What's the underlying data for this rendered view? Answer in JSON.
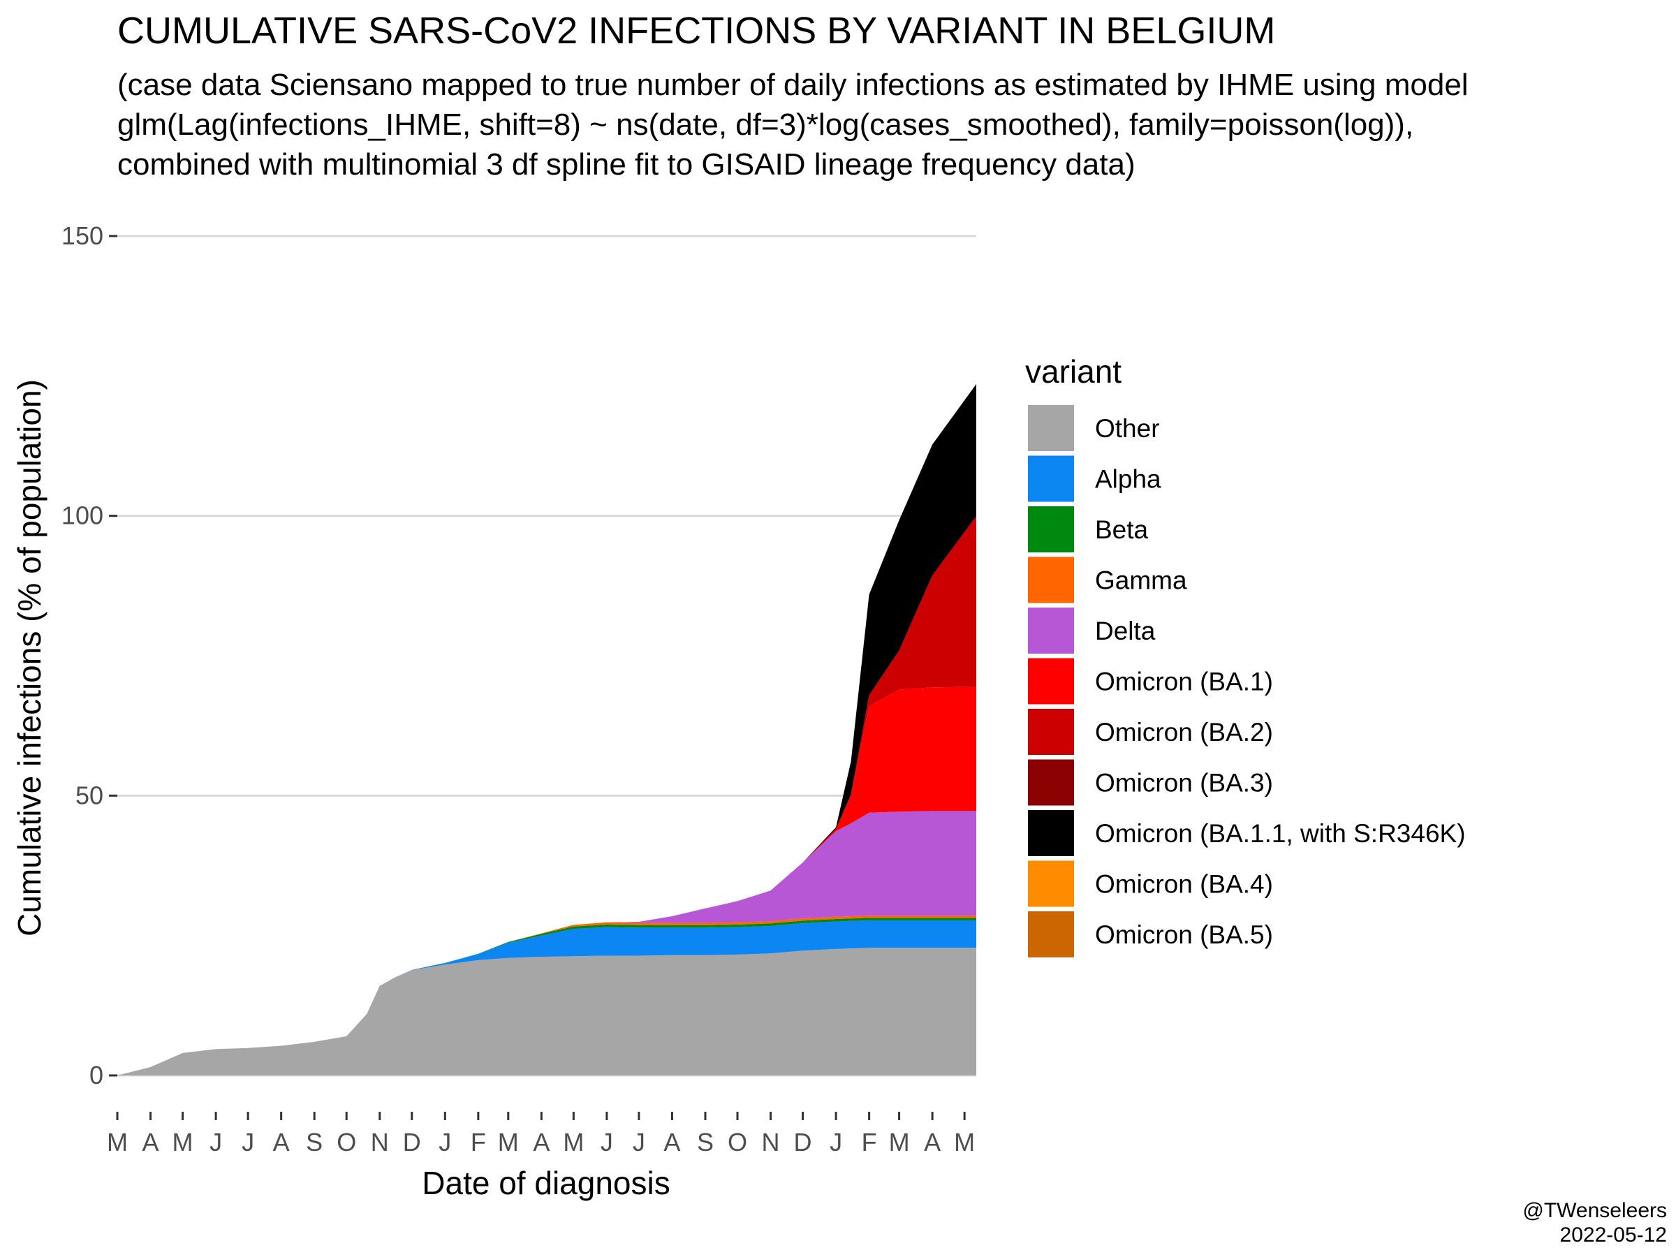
{
  "chart_data": {
    "type": "area",
    "stacked": true,
    "title": "CUMULATIVE SARS-CoV2 INFECTIONS BY VARIANT IN BELGIUM",
    "subtitle": [
      "(case data Sciensano mapped to true number of daily infections as estimated by IHME using model",
      "glm(Lag(infections_IHME, shift=8) ~ ns(date, df=3)*log(cases_smoothed), family=poisson(log)),",
      "combined with multinomial 3 df spline fit to GISAID lineage frequency data)"
    ],
    "xlabel": "Date of diagnosis",
    "ylabel": "Cumulative infections (% of population)",
    "ylim": [
      0,
      150
    ],
    "yticks": [
      0,
      50,
      100,
      150
    ],
    "xlim": [
      "2020-03-01",
      "2022-05-12"
    ],
    "xtick_dates": [
      "2020-03-01",
      "2020-04-01",
      "2020-05-01",
      "2020-06-01",
      "2020-07-01",
      "2020-08-01",
      "2020-09-01",
      "2020-10-01",
      "2020-11-01",
      "2020-12-01",
      "2021-01-01",
      "2021-02-01",
      "2021-03-01",
      "2021-04-01",
      "2021-05-01",
      "2021-06-01",
      "2021-07-01",
      "2021-08-01",
      "2021-09-01",
      "2021-10-01",
      "2021-11-01",
      "2021-12-01",
      "2022-01-01",
      "2022-02-01",
      "2022-03-01",
      "2022-04-01",
      "2022-05-01"
    ],
    "xtick_labels": [
      "M",
      "A",
      "M",
      "J",
      "J",
      "A",
      "S",
      "O",
      "N",
      "D",
      "J",
      "F",
      "M",
      "A",
      "M",
      "J",
      "J",
      "A",
      "S",
      "O",
      "N",
      "D",
      "J",
      "F",
      "M",
      "A",
      "M"
    ],
    "grid": "horizontal major",
    "legend": {
      "title": "variant",
      "position": "right",
      "entries": [
        "Other",
        "Alpha",
        "Beta",
        "Gamma",
        "Delta",
        "Omicron (BA.1)",
        "Omicron (BA.2)",
        "Omicron (BA.3)",
        "Omicron (BA.1.1, with S:R346K)",
        "Omicron (BA.4)",
        "Omicron (BA.5)"
      ]
    },
    "x": [
      "2020-03-01",
      "2020-04-01",
      "2020-05-01",
      "2020-06-01",
      "2020-07-01",
      "2020-08-01",
      "2020-09-01",
      "2020-10-01",
      "2020-10-20",
      "2020-11-01",
      "2020-11-15",
      "2020-12-01",
      "2021-01-01",
      "2021-02-01",
      "2021-03-01",
      "2021-04-01",
      "2021-05-01",
      "2021-06-01",
      "2021-07-01",
      "2021-08-01",
      "2021-09-01",
      "2021-10-01",
      "2021-11-01",
      "2021-12-01",
      "2022-01-01",
      "2022-01-15",
      "2022-02-01",
      "2022-03-01",
      "2022-04-01",
      "2022-05-12"
    ],
    "series": [
      {
        "name": "Other",
        "color": "#a6a6a6",
        "values": [
          0,
          1.5,
          4,
          4.7,
          4.9,
          5.3,
          6,
          7,
          11,
          16,
          17.5,
          18.8,
          19.8,
          20.6,
          21,
          21.2,
          21.3,
          21.4,
          21.4,
          21.5,
          21.5,
          21.6,
          21.8,
          22.3,
          22.6,
          22.7,
          22.8,
          22.8,
          22.8,
          22.8
        ]
      },
      {
        "name": "Alpha",
        "color": "#0c86f3",
        "values": [
          0,
          0,
          0,
          0,
          0,
          0,
          0,
          0,
          0,
          0,
          0,
          0.05,
          0.3,
          1.1,
          2.7,
          3.8,
          4.9,
          5.1,
          5,
          4.9,
          4.9,
          4.9,
          4.9,
          4.9,
          4.9,
          4.9,
          4.9,
          4.9,
          4.9,
          4.9
        ]
      },
      {
        "name": "Beta",
        "color": "#00890f",
        "values": [
          0,
          0,
          0,
          0,
          0,
          0,
          0,
          0,
          0,
          0,
          0,
          0,
          0,
          0.05,
          0.15,
          0.3,
          0.4,
          0.45,
          0.45,
          0.45,
          0.45,
          0.45,
          0.45,
          0.45,
          0.45,
          0.45,
          0.45,
          0.45,
          0.45,
          0.45
        ]
      },
      {
        "name": "Gamma",
        "color": "#ff6600",
        "values": [
          0,
          0,
          0,
          0,
          0,
          0,
          0,
          0,
          0,
          0,
          0,
          0,
          0,
          0,
          0,
          0.1,
          0.3,
          0.4,
          0.4,
          0.4,
          0.4,
          0.4,
          0.4,
          0.4,
          0.4,
          0.4,
          0.4,
          0.4,
          0.4,
          0.4
        ]
      },
      {
        "name": "Delta",
        "color": "#b857d6",
        "values": [
          0,
          0,
          0,
          0,
          0,
          0,
          0,
          0,
          0,
          0,
          0,
          0,
          0,
          0,
          0,
          0,
          0,
          0,
          0.2,
          1.2,
          2.6,
          3.8,
          5.5,
          10,
          15.3,
          16.6,
          18.4,
          18.6,
          18.7,
          18.7
        ]
      },
      {
        "name": "Omicron (BA.1)",
        "color": "#ff0000",
        "values": [
          0,
          0,
          0,
          0,
          0,
          0,
          0,
          0,
          0,
          0,
          0,
          0,
          0,
          0,
          0,
          0,
          0,
          0,
          0,
          0,
          0,
          0,
          0,
          0,
          0.4,
          5,
          19,
          21.8,
          22.1,
          22.2
        ]
      },
      {
        "name": "Omicron (BA.2)",
        "color": "#cc0000",
        "values": [
          0,
          0,
          0,
          0,
          0,
          0,
          0,
          0,
          0,
          0,
          0,
          0,
          0,
          0,
          0,
          0,
          0,
          0,
          0,
          0,
          0,
          0,
          0,
          0,
          0,
          0.1,
          2,
          7,
          20,
          30.5
        ]
      },
      {
        "name": "Omicron (BA.3)",
        "color": "#8b0000",
        "values": [
          0,
          0,
          0,
          0,
          0,
          0,
          0,
          0,
          0,
          0,
          0,
          0,
          0,
          0,
          0,
          0,
          0,
          0,
          0,
          0,
          0,
          0,
          0,
          0,
          0,
          0,
          0,
          0,
          0,
          0
        ]
      },
      {
        "name": "Omicron (BA.1.1, with S:R346K)",
        "color": "#000000",
        "values": [
          0,
          0,
          0,
          0,
          0,
          0,
          0,
          0,
          0,
          0,
          0,
          0,
          0,
          0,
          0,
          0,
          0,
          0,
          0,
          0,
          0,
          0,
          0,
          0,
          0.3,
          6,
          18,
          23.3,
          23.4,
          23.6
        ]
      },
      {
        "name": "Omicron (BA.4)",
        "color": "#ff8c00",
        "values": [
          0,
          0,
          0,
          0,
          0,
          0,
          0,
          0,
          0,
          0,
          0,
          0,
          0,
          0,
          0,
          0,
          0,
          0,
          0,
          0,
          0,
          0,
          0,
          0,
          0,
          0,
          0,
          0,
          0,
          0
        ]
      },
      {
        "name": "Omicron (BA.5)",
        "color": "#cc6600",
        "values": [
          0,
          0,
          0,
          0,
          0,
          0,
          0,
          0,
          0,
          0,
          0,
          0,
          0,
          0,
          0,
          0,
          0,
          0,
          0,
          0,
          0,
          0,
          0,
          0,
          0,
          0,
          0,
          0,
          0,
          0
        ]
      }
    ]
  },
  "caption": {
    "handle": "@TWenseleers",
    "date": "2022-05-12"
  }
}
